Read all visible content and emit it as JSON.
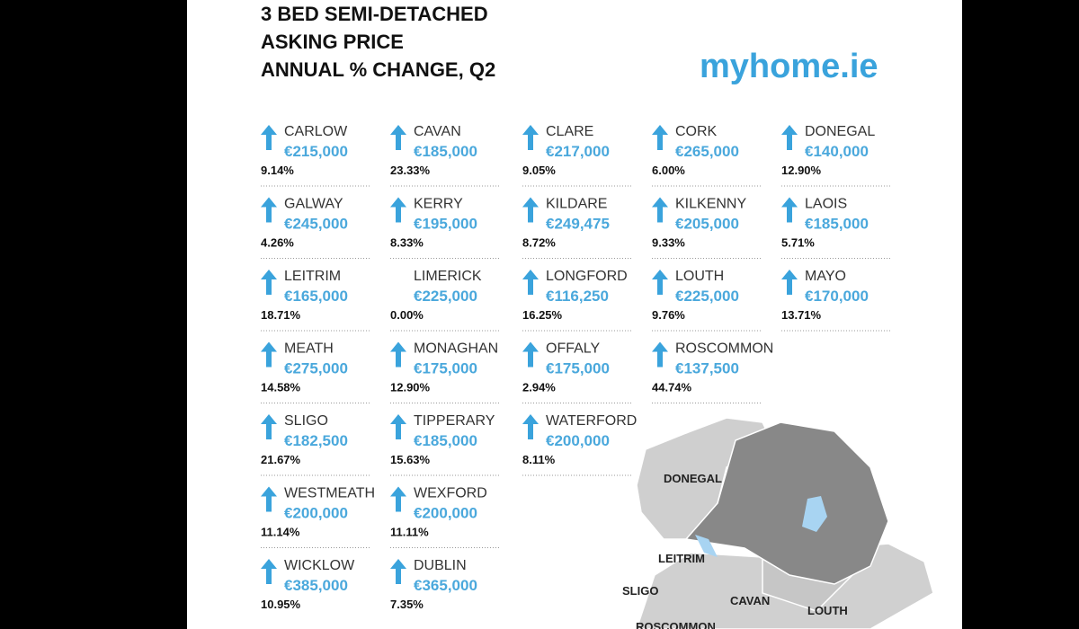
{
  "title_lines": [
    "3 BED SEMI-DETACHED",
    "ASKING PRICE",
    "ANNUAL % CHANGE, Q2"
  ],
  "logo": "myhome.ie",
  "rows": [
    [
      {
        "name": "CARLOW",
        "price": "€215,000",
        "change": "9.14%",
        "arrow": true
      },
      {
        "name": "CAVAN",
        "price": "€185,000",
        "change": "23.33%",
        "arrow": true
      },
      {
        "name": "CLARE",
        "price": "€217,000",
        "change": "9.05%",
        "arrow": true
      },
      {
        "name": "CORK",
        "price": "€265,000",
        "change": "6.00%",
        "arrow": true
      },
      {
        "name": "DONEGAL",
        "price": "€140,000",
        "change": "12.90%",
        "arrow": true
      }
    ],
    [
      {
        "name": "GALWAY",
        "price": "€245,000",
        "change": "4.26%",
        "arrow": true
      },
      {
        "name": "KERRY",
        "price": "€195,000",
        "change": "8.33%",
        "arrow": true
      },
      {
        "name": "KILDARE",
        "price": "€249,475",
        "change": "8.72%",
        "arrow": true
      },
      {
        "name": "KILKENNY",
        "price": "€205,000",
        "change": "9.33%",
        "arrow": true
      },
      {
        "name": "LAOIS",
        "price": "€185,000",
        "change": "5.71%",
        "arrow": true
      }
    ],
    [
      {
        "name": "LEITRIM",
        "price": "€165,000",
        "change": "18.71%",
        "arrow": true
      },
      {
        "name": "LIMERICK",
        "price": "€225,000",
        "change": "0.00%",
        "arrow": false
      },
      {
        "name": "LONGFORD",
        "price": "€116,250",
        "change": "16.25%",
        "arrow": true
      },
      {
        "name": "LOUTH",
        "price": "€225,000",
        "change": "9.76%",
        "arrow": true
      },
      {
        "name": "MAYO",
        "price": "€170,000",
        "change": "13.71%",
        "arrow": true
      }
    ],
    [
      {
        "name": "MEATH",
        "price": "€275,000",
        "change": "14.58%",
        "arrow": true
      },
      {
        "name": "MONAGHAN",
        "price": "€175,000",
        "change": "12.90%",
        "arrow": true
      },
      {
        "name": "OFFALY",
        "price": "€175,000",
        "change": "2.94%",
        "arrow": true
      },
      {
        "name": "ROSCOMMON",
        "price": "€137,500",
        "change": "44.74%",
        "arrow": true
      }
    ],
    [
      {
        "name": "SLIGO",
        "price": "€182,500",
        "change": "21.67%",
        "arrow": true
      },
      {
        "name": "TIPPERARY",
        "price": "€185,000",
        "change": "15.63%",
        "arrow": true
      },
      {
        "name": "WATERFORD",
        "price": "€200,000",
        "change": "8.11%",
        "arrow": true
      }
    ],
    [
      {
        "name": "WESTMEATH",
        "price": "€200,000",
        "change": "11.14%",
        "arrow": true
      },
      {
        "name": "WEXFORD",
        "price": "€200,000",
        "change": "11.11%",
        "arrow": true
      }
    ],
    [
      {
        "name": "WICKLOW",
        "price": "€385,000",
        "change": "10.95%",
        "arrow": true
      },
      {
        "name": "DUBLIN",
        "price": "€365,000",
        "change": "7.35%",
        "arrow": true
      }
    ]
  ],
  "map_labels": [
    "DONEGAL",
    "LEITRIM",
    "SLIGO",
    "CAVAN",
    "LOUTH",
    "ROSCOMMON"
  ]
}
